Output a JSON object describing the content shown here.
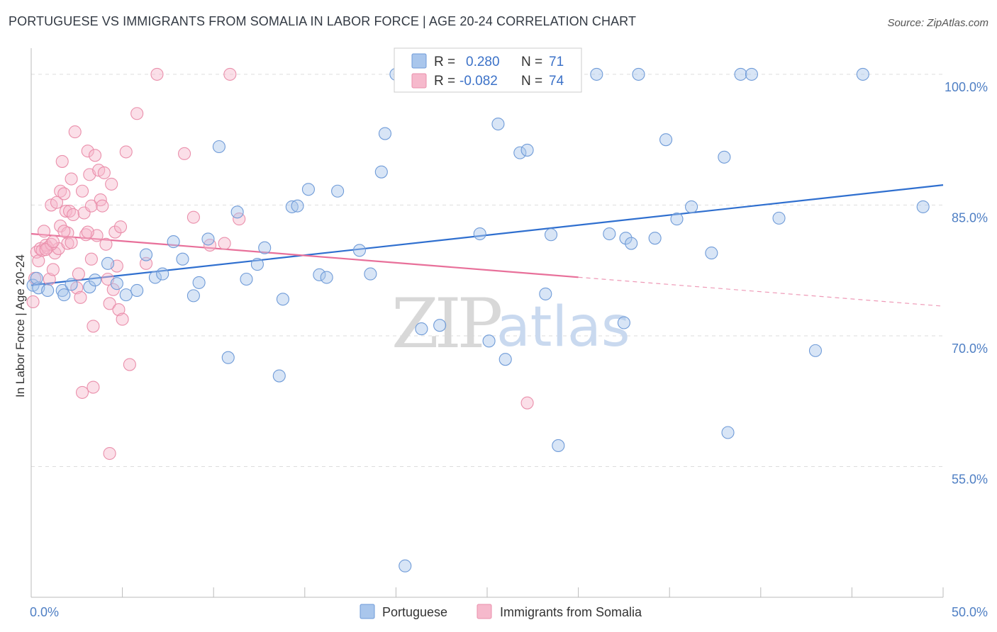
{
  "title": "PORTUGUESE VS IMMIGRANTS FROM SOMALIA IN LABOR FORCE | AGE 20-24 CORRELATION CHART",
  "source": "Source: ZipAtlas.com",
  "watermark": {
    "zip": "ZIP",
    "atlas": "atlas"
  },
  "colors": {
    "portuguese_fill": "#a9c6ec",
    "portuguese_stroke": "#6f9bd8",
    "portuguese_line": "#2f6fcf",
    "somalia_fill": "#f6b9cc",
    "somalia_stroke": "#ea8fab",
    "somalia_line": "#e8709a",
    "axis_label": "#4f7fc4",
    "grid": "#dddddd"
  },
  "legend": {
    "row1": {
      "r_label": "R =",
      "r_value": "0.280",
      "n_label": "N =",
      "n_value": "71"
    },
    "row2": {
      "r_label": "R =",
      "r_value": "-0.082",
      "n_label": "N =",
      "n_value": "74"
    }
  },
  "chart_data": {
    "type": "scatter",
    "title": "PORTUGUESE VS IMMIGRANTS FROM SOMALIA IN LABOR FORCE | AGE 20-24 CORRELATION CHART",
    "xlabel": "",
    "ylabel": "In Labor Force | Age 20-24",
    "xlim": [
      0,
      50
    ],
    "ylim": [
      40,
      103
    ],
    "x_tick_labels": [
      "0.0%",
      "50.0%"
    ],
    "y_ticks": [
      55,
      70,
      85,
      100
    ],
    "y_tick_labels": [
      "55.0%",
      "70.0%",
      "85.0%",
      "100.0%"
    ],
    "legend_position": "top-center",
    "series": [
      {
        "name": "Portuguese",
        "r": 0.28,
        "n": 71,
        "trend": {
          "x": [
            0,
            50
          ],
          "y": [
            75.8,
            87.3
          ],
          "dashed_from": null
        },
        "points": [
          [
            0.1,
            75.8
          ],
          [
            0.4,
            75.5
          ],
          [
            0.9,
            75.2
          ],
          [
            0.3,
            76.6
          ],
          [
            1.7,
            75.2
          ],
          [
            1.8,
            74.7
          ],
          [
            2.2,
            75.9
          ],
          [
            3.2,
            75.6
          ],
          [
            3.5,
            76.4
          ],
          [
            4.2,
            78.3
          ],
          [
            4.7,
            76.0
          ],
          [
            5.2,
            74.7
          ],
          [
            5.8,
            75.2
          ],
          [
            6.3,
            79.3
          ],
          [
            6.8,
            76.7
          ],
          [
            7.2,
            77.1
          ],
          [
            7.8,
            80.8
          ],
          [
            8.3,
            78.8
          ],
          [
            8.9,
            74.6
          ],
          [
            9.2,
            76.1
          ],
          [
            9.7,
            81.1
          ],
          [
            10.3,
            91.7
          ],
          [
            10.8,
            67.5
          ],
          [
            11.3,
            84.2
          ],
          [
            11.8,
            76.5
          ],
          [
            12.4,
            78.2
          ],
          [
            12.8,
            80.1
          ],
          [
            13.6,
            65.4
          ],
          [
            13.8,
            74.2
          ],
          [
            14.3,
            84.8
          ],
          [
            14.6,
            84.9
          ],
          [
            15.2,
            86.8
          ],
          [
            15.8,
            77.0
          ],
          [
            16.2,
            76.7
          ],
          [
            16.8,
            86.6
          ],
          [
            18.0,
            79.8
          ],
          [
            18.6,
            77.1
          ],
          [
            19.2,
            88.8
          ],
          [
            19.4,
            93.2
          ],
          [
            20.0,
            100.0
          ],
          [
            21.4,
            70.8
          ],
          [
            22.4,
            71.2
          ],
          [
            24.6,
            81.7
          ],
          [
            25.1,
            69.4
          ],
          [
            25.6,
            94.3
          ],
          [
            26.0,
            67.3
          ],
          [
            26.8,
            91.0
          ],
          [
            27.2,
            91.3
          ],
          [
            28.2,
            74.8
          ],
          [
            28.5,
            81.6
          ],
          [
            28.9,
            57.4
          ],
          [
            31.0,
            100.0
          ],
          [
            31.7,
            81.7
          ],
          [
            32.5,
            71.5
          ],
          [
            32.6,
            81.2
          ],
          [
            32.9,
            80.6
          ],
          [
            33.3,
            100.0
          ],
          [
            34.2,
            81.2
          ],
          [
            34.8,
            92.5
          ],
          [
            35.4,
            83.4
          ],
          [
            36.2,
            84.8
          ],
          [
            37.3,
            79.5
          ],
          [
            38.0,
            90.5
          ],
          [
            38.2,
            58.9
          ],
          [
            38.9,
            100.0
          ],
          [
            39.5,
            100.0
          ],
          [
            41.0,
            83.5
          ],
          [
            43.0,
            68.3
          ],
          [
            45.6,
            100.0
          ],
          [
            48.9,
            84.8
          ],
          [
            20.5,
            43.6
          ]
        ]
      },
      {
        "name": "Immigrants from Somalia",
        "r": -0.082,
        "n": 74,
        "trend": {
          "x": [
            0,
            50
          ],
          "y": [
            81.7,
            73.4
          ],
          "dashed_from": 30
        },
        "points": [
          [
            0.1,
            73.9
          ],
          [
            0.2,
            76.6
          ],
          [
            0.3,
            79.6
          ],
          [
            0.4,
            78.6
          ],
          [
            0.5,
            80.0
          ],
          [
            0.6,
            79.8
          ],
          [
            0.7,
            82.0
          ],
          [
            0.8,
            80.4
          ],
          [
            0.9,
            80.1
          ],
          [
            1.0,
            76.5
          ],
          [
            1.1,
            85.0
          ],
          [
            1.2,
            77.6
          ],
          [
            1.3,
            79.5
          ],
          [
            1.4,
            85.3
          ],
          [
            1.5,
            80.0
          ],
          [
            1.6,
            82.6
          ],
          [
            1.6,
            86.6
          ],
          [
            1.7,
            90.0
          ],
          [
            1.8,
            86.3
          ],
          [
            1.9,
            84.3
          ],
          [
            2.0,
            81.8
          ],
          [
            2.0,
            80.6
          ],
          [
            2.1,
            84.3
          ],
          [
            2.2,
            88.0
          ],
          [
            2.3,
            83.9
          ],
          [
            2.4,
            93.4
          ],
          [
            2.5,
            75.5
          ],
          [
            2.6,
            77.1
          ],
          [
            2.7,
            74.4
          ],
          [
            2.8,
            86.6
          ],
          [
            2.9,
            84.1
          ],
          [
            3.0,
            81.6
          ],
          [
            3.1,
            91.2
          ],
          [
            3.2,
            88.5
          ],
          [
            3.3,
            78.8
          ],
          [
            3.3,
            84.9
          ],
          [
            3.4,
            71.1
          ],
          [
            3.5,
            90.7
          ],
          [
            3.6,
            81.5
          ],
          [
            3.7,
            89.0
          ],
          [
            3.8,
            85.6
          ],
          [
            3.9,
            84.9
          ],
          [
            4.0,
            88.7
          ],
          [
            4.1,
            80.5
          ],
          [
            4.2,
            76.5
          ],
          [
            4.3,
            73.7
          ],
          [
            4.4,
            87.4
          ],
          [
            4.5,
            75.3
          ],
          [
            4.6,
            81.9
          ],
          [
            4.7,
            78.0
          ],
          [
            4.8,
            73.0
          ],
          [
            4.9,
            82.5
          ],
          [
            5.0,
            71.9
          ],
          [
            5.2,
            91.1
          ],
          [
            5.4,
            66.7
          ],
          [
            5.8,
            95.5
          ],
          [
            6.3,
            78.3
          ],
          [
            6.9,
            100.0
          ],
          [
            8.4,
            90.9
          ],
          [
            8.9,
            83.6
          ],
          [
            9.8,
            80.4
          ],
          [
            10.6,
            80.6
          ],
          [
            10.9,
            100.0
          ],
          [
            11.4,
            83.4
          ],
          [
            3.4,
            64.1
          ],
          [
            2.8,
            63.5
          ],
          [
            4.3,
            56.5
          ],
          [
            27.2,
            62.3
          ],
          [
            1.1,
            80.5
          ],
          [
            0.8,
            79.9
          ],
          [
            1.2,
            80.8
          ],
          [
            3.1,
            81.9
          ],
          [
            2.2,
            80.7
          ],
          [
            1.8,
            82.0
          ]
        ]
      }
    ]
  },
  "bottom_legend": {
    "series1": "Portuguese",
    "series2": "Immigrants from Somalia"
  }
}
